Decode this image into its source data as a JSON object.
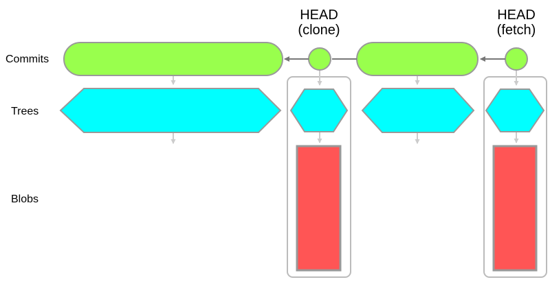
{
  "rows": {
    "commits": "Commits",
    "trees": "Trees",
    "blobs": "Blobs"
  },
  "heads": {
    "clone": {
      "line1": "HEAD",
      "line2": "(clone)"
    },
    "fetch": {
      "line1": "HEAD",
      "line2": "(fetch)"
    }
  },
  "colors": {
    "commit": "#99ff4d",
    "tree": "#00ffff",
    "blob": "#ff5555",
    "stroke": "#999999",
    "box": "#bbbbbb",
    "arrow": "#777777",
    "faint_arrow": "#cccccc"
  }
}
